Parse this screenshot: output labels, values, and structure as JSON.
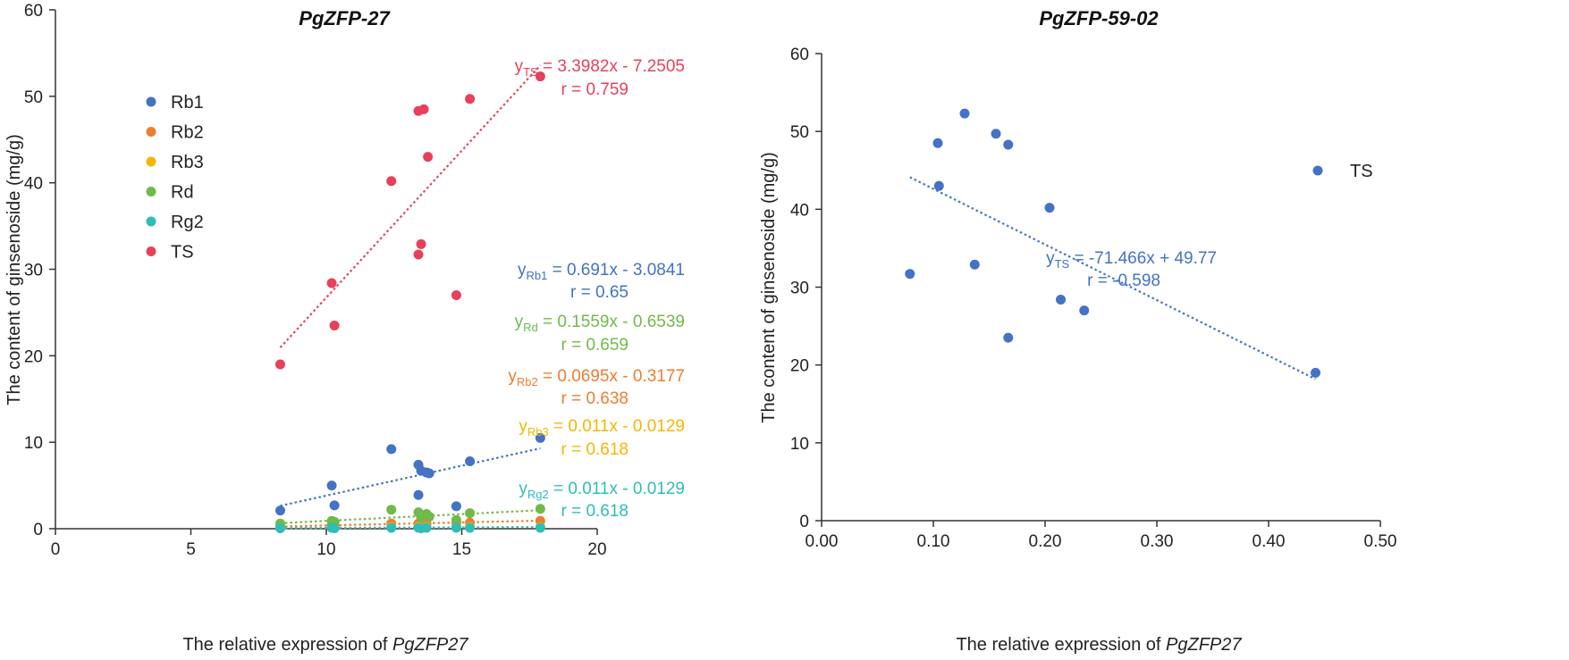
{
  "chart_data": [
    {
      "type": "scatter",
      "title": "PgZFP-27",
      "xlabel_prefix": "The relative expression of ",
      "xlabel_gene": "PgZFP27",
      "ylabel": "The content of ginsenoside (mg/g)",
      "xlim": [
        0,
        20
      ],
      "ylim": [
        0,
        60
      ],
      "xticks": [
        "0",
        "5",
        "10",
        "15",
        "20"
      ],
      "yticks": [
        "0",
        "10",
        "20",
        "30",
        "40",
        "50",
        "60"
      ],
      "legend_position": "top-left",
      "series": [
        {
          "name": "Rb1",
          "color": "#4472C4",
          "points": [
            [
              8.3,
              2.1
            ],
            [
              10.2,
              5.0
            ],
            [
              10.3,
              2.7
            ],
            [
              12.4,
              9.2
            ],
            [
              13.4,
              7.4
            ],
            [
              13.5,
              6.7
            ],
            [
              13.7,
              6.5
            ],
            [
              13.8,
              6.4
            ],
            [
              13.4,
              3.9
            ],
            [
              14.8,
              2.6
            ],
            [
              15.3,
              7.8
            ],
            [
              17.9,
              10.5
            ]
          ],
          "trend": {
            "x": [
              8.3,
              17.9
            ],
            "y": [
              2.65,
              9.29
            ]
          },
          "eq_var": "y",
          "eq_sub": "Rb1",
          "eq_rhs": " = 0.691x - 3.0841",
          "r_text": "r = 0.65"
        },
        {
          "name": "Rb2",
          "color": "#ED7D31",
          "points": [
            [
              8.3,
              0.3
            ],
            [
              10.2,
              0.4
            ],
            [
              10.3,
              0.4
            ],
            [
              12.4,
              0.6
            ],
            [
              13.4,
              0.6
            ],
            [
              13.5,
              0.5
            ],
            [
              13.7,
              0.6
            ],
            [
              14.8,
              0.7
            ],
            [
              15.3,
              0.7
            ],
            [
              17.9,
              0.9
            ]
          ],
          "trend": {
            "x": [
              8.3,
              17.9
            ],
            "y": [
              0.26,
              0.93
            ]
          },
          "eq_var": "y",
          "eq_sub": "Rb2",
          "eq_rhs": " = 0.0695x - 0.3177",
          "r_text": "r = 0.638"
        },
        {
          "name": "Rb3",
          "color": "#F2B800",
          "points": [
            [
              8.3,
              0.1
            ],
            [
              10.2,
              0.1
            ],
            [
              10.3,
              0.1
            ],
            [
              12.4,
              0.2
            ],
            [
              13.4,
              0.2
            ],
            [
              13.5,
              0.1
            ],
            [
              13.7,
              0.2
            ],
            [
              14.8,
              0.2
            ],
            [
              15.3,
              0.2
            ],
            [
              17.9,
              0.2
            ]
          ],
          "trend": {
            "x": [
              8.3,
              17.9
            ],
            "y": [
              0.08,
              0.18
            ]
          },
          "eq_var": "y",
          "eq_sub": "Rb3",
          "eq_rhs": " = 0.011x - 0.0129",
          "r_text": "r = 0.618"
        },
        {
          "name": "Rd",
          "color": "#70B94A",
          "points": [
            [
              8.3,
              0.6
            ],
            [
              10.2,
              0.9
            ],
            [
              10.3,
              0.8
            ],
            [
              12.4,
              2.2
            ],
            [
              13.4,
              1.9
            ],
            [
              13.5,
              1.3
            ],
            [
              13.7,
              1.7
            ],
            [
              13.8,
              1.4
            ],
            [
              14.8,
              1.0
            ],
            [
              15.3,
              1.8
            ],
            [
              17.9,
              2.3
            ]
          ],
          "trend": {
            "x": [
              8.3,
              17.9
            ],
            "y": [
              0.64,
              2.14
            ]
          },
          "eq_var": "y",
          "eq_sub": "Rd",
          "eq_rhs": " = 0.1559x - 0.6539",
          "r_text": "r = 0.659"
        },
        {
          "name": "Rg2",
          "color": "#2EBDB9",
          "points": [
            [
              8.3,
              0.05
            ],
            [
              10.2,
              0.1
            ],
            [
              10.3,
              0.05
            ],
            [
              12.4,
              0.1
            ],
            [
              13.4,
              0.1
            ],
            [
              13.5,
              0.05
            ],
            [
              13.7,
              0.1
            ],
            [
              14.8,
              0.1
            ],
            [
              15.3,
              0.1
            ],
            [
              17.9,
              0.1
            ]
          ],
          "trend": {
            "x": [
              8.3,
              17.9
            ],
            "y": [
              0.08,
              0.18
            ]
          },
          "eq_var": "y",
          "eq_sub": "Rg2",
          "eq_rhs": " = 0.011x - 0.0129",
          "r_text": "r = 0.618"
        },
        {
          "name": "TS",
          "color": "#E8405A",
          "points": [
            [
              8.3,
              19.0
            ],
            [
              10.2,
              28.4
            ],
            [
              10.3,
              23.5
            ],
            [
              12.4,
              40.2
            ],
            [
              13.4,
              48.3
            ],
            [
              13.6,
              48.5
            ],
            [
              13.75,
              43.0
            ],
            [
              13.5,
              32.9
            ],
            [
              13.4,
              31.7
            ],
            [
              14.8,
              27.0
            ],
            [
              15.3,
              49.7
            ],
            [
              17.9,
              52.3
            ]
          ],
          "trend": {
            "x": [
              8.3,
              17.9
            ],
            "y": [
              20.95,
              53.57
            ]
          },
          "eq_var": "y",
          "eq_sub": "TS",
          "eq_rhs": " = 3.3982x - 7.2505",
          "r_text": "r = 0.759"
        }
      ]
    },
    {
      "type": "scatter",
      "title": "PgZFP-59-02",
      "xlabel_prefix": "The relative expression of ",
      "xlabel_gene": "PgZFP27",
      "ylabel": "The content of ginsenoside (mg/g)",
      "xlim": [
        0,
        0.5
      ],
      "ylim": [
        0,
        60
      ],
      "xticks": [
        "0.00",
        "0.10",
        "0.20",
        "0.30",
        "0.40",
        "0.50"
      ],
      "yticks": [
        "0",
        "10",
        "20",
        "30",
        "40",
        "50",
        "60"
      ],
      "legend_position": "right",
      "series": [
        {
          "name": "TS",
          "color": "#4472C4",
          "points": [
            [
              0.079,
              31.7
            ],
            [
              0.104,
              48.5
            ],
            [
              0.105,
              43.0
            ],
            [
              0.128,
              52.3
            ],
            [
              0.137,
              32.9
            ],
            [
              0.156,
              49.7
            ],
            [
              0.167,
              48.3
            ],
            [
              0.167,
              23.5
            ],
            [
              0.204,
              40.2
            ],
            [
              0.214,
              28.4
            ],
            [
              0.235,
              27.0
            ],
            [
              0.442,
              19.0
            ]
          ],
          "trend": {
            "x": [
              0.079,
              0.442
            ],
            "y": [
              44.12,
              18.18
            ]
          },
          "eq_var": "y",
          "eq_sub": "TS",
          "eq_rhs": " = -71.466x + 49.77",
          "r_text": "r = -0.598"
        }
      ]
    }
  ]
}
